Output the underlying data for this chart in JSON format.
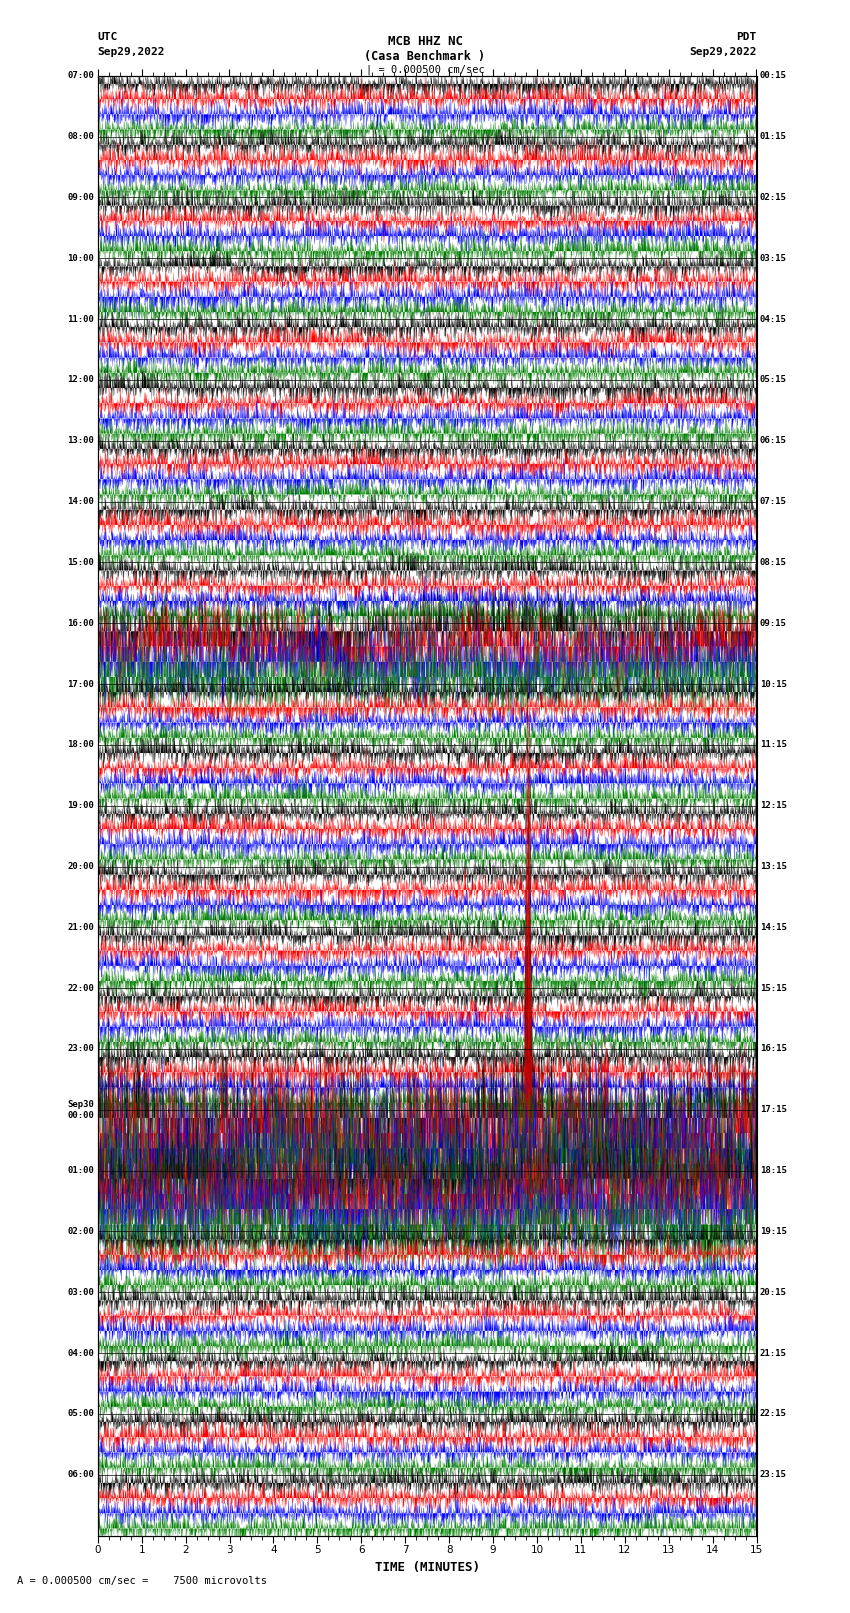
{
  "title_line1": "MCB HHZ NC",
  "title_line2": "(Casa Benchmark )",
  "scale_bar": "| = 0.000500 cm/sec",
  "utc_label": "UTC",
  "pdt_label": "PDT",
  "left_date": "Sep29,2022",
  "right_date": "Sep29,2022",
  "xlabel": "TIME (MINUTES)",
  "scale_note": "= 0.000500 cm/sec =    7500 microvolts",
  "left_times": [
    "07:00",
    "08:00",
    "09:00",
    "10:00",
    "11:00",
    "12:00",
    "13:00",
    "14:00",
    "15:00",
    "16:00",
    "17:00",
    "18:00",
    "19:00",
    "20:00",
    "21:00",
    "22:00",
    "23:00",
    "Sep30\n00:00",
    "01:00",
    "02:00",
    "03:00",
    "04:00",
    "05:00",
    "06:00"
  ],
  "right_times": [
    "00:15",
    "01:15",
    "02:15",
    "03:15",
    "04:15",
    "05:15",
    "06:15",
    "07:15",
    "08:15",
    "09:15",
    "10:15",
    "11:15",
    "12:15",
    "13:15",
    "14:15",
    "15:15",
    "16:15",
    "17:15",
    "18:15",
    "19:15",
    "20:15",
    "21:15",
    "22:15",
    "23:15"
  ],
  "n_rows": 24,
  "n_cols": 4,
  "trace_duration_min": 15,
  "colors": [
    "black",
    "red",
    "blue",
    "green"
  ],
  "bg_color": "white",
  "x_ticks": [
    0,
    1,
    2,
    3,
    4,
    5,
    6,
    7,
    8,
    9,
    10,
    11,
    12,
    13,
    14,
    15
  ],
  "noise_amplitude": 0.42,
  "seed": 42
}
